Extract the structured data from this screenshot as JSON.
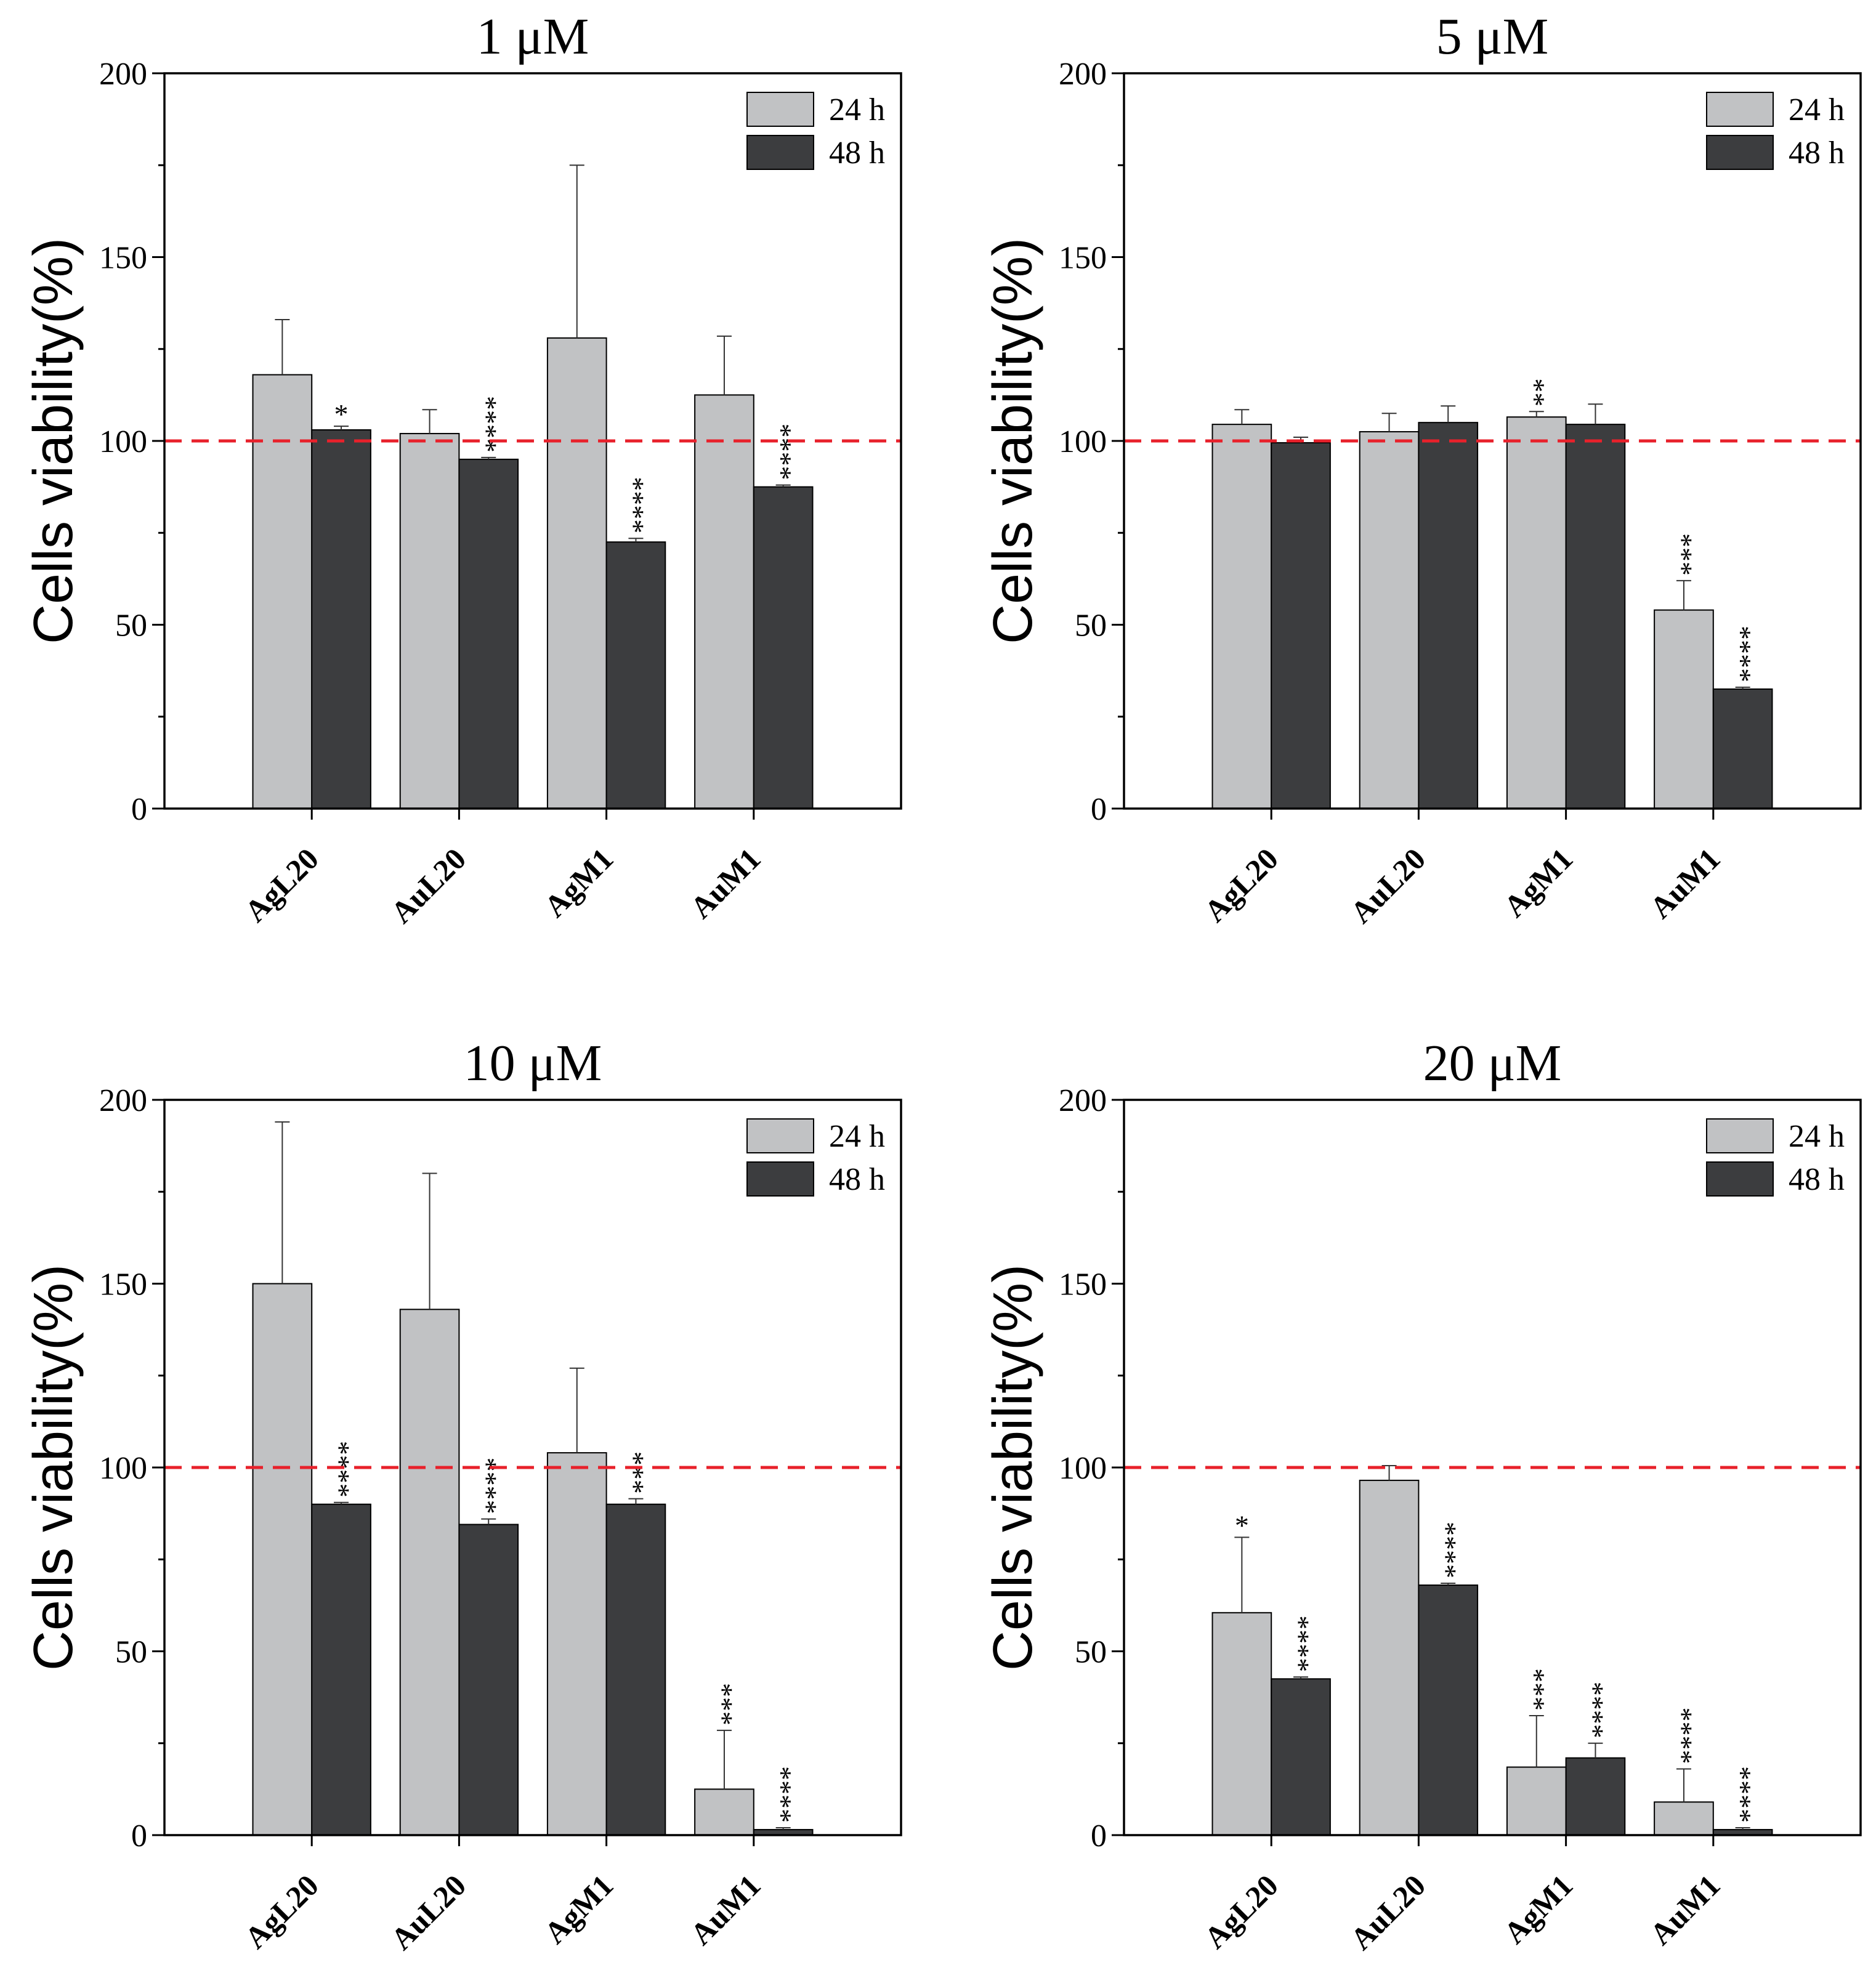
{
  "colors": {
    "bar_24h": "#c1c2c4",
    "bar_48h": "#3c3d3f",
    "reference_line": "#e8212b",
    "axis": "#000000",
    "error_bar": "#333333"
  },
  "chart_data": [
    {
      "type": "bar",
      "title": "1 μM",
      "categories": [
        "AgL20",
        "AuL20",
        "AgM1",
        "AuM1"
      ],
      "xlabel": "",
      "ylabel": "Cells viability(%)",
      "ylim": [
        0,
        200
      ],
      "yticks": [
        0,
        50,
        100,
        150,
        200
      ],
      "reference_line": 100,
      "legend": "top-right",
      "series": [
        {
          "name": "24 h",
          "color": "#c1c2c4",
          "values": [
            118,
            102,
            128,
            112.5
          ],
          "errors": [
            15,
            6.5,
            47,
            16
          ],
          "significance": [
            "",
            "",
            "",
            ""
          ]
        },
        {
          "name": "48 h",
          "color": "#3c3d3f",
          "values": [
            103,
            95,
            72.5,
            87.5
          ],
          "errors": [
            1,
            0.5,
            1,
            0.5
          ],
          "significance": [
            "*",
            "****",
            "****",
            "****"
          ]
        }
      ]
    },
    {
      "type": "bar",
      "title": "5 μM",
      "categories": [
        "AgL20",
        "AuL20",
        "AgM1",
        "AuM1"
      ],
      "xlabel": "",
      "ylabel": "Cells viability(%)",
      "ylim": [
        0,
        200
      ],
      "yticks": [
        0,
        50,
        100,
        150,
        200
      ],
      "reference_line": 100,
      "legend": "top-right",
      "series": [
        {
          "name": "24 h",
          "color": "#c1c2c4",
          "values": [
            104.5,
            102.5,
            106.5,
            54
          ],
          "errors": [
            4,
            5,
            1.5,
            8
          ],
          "significance": [
            "",
            "",
            "**",
            "***"
          ]
        },
        {
          "name": "48 h",
          "color": "#3c3d3f",
          "values": [
            99.5,
            105,
            104.5,
            32.5
          ],
          "errors": [
            1.5,
            4.5,
            5.5,
            0.5
          ],
          "significance": [
            "",
            "",
            "",
            "****"
          ]
        }
      ]
    },
    {
      "type": "bar",
      "title": "10 μM",
      "categories": [
        "AgL20",
        "AuL20",
        "AgM1",
        "AuM1"
      ],
      "xlabel": "",
      "ylabel": "Cells viability(%)",
      "ylim": [
        0,
        200
      ],
      "yticks": [
        0,
        50,
        100,
        150,
        200
      ],
      "reference_line": 100,
      "legend": "top-right",
      "series": [
        {
          "name": "24 h",
          "color": "#c1c2c4",
          "values": [
            150,
            143,
            104,
            12.5
          ],
          "errors": [
            44,
            37,
            23,
            16
          ],
          "significance": [
            "",
            "",
            "",
            "***"
          ]
        },
        {
          "name": "48 h",
          "color": "#3c3d3f",
          "values": [
            90,
            84.5,
            90,
            1.5
          ],
          "errors": [
            0.5,
            1.5,
            1.5,
            0.5
          ],
          "significance": [
            "****",
            "****",
            "***",
            "****"
          ]
        }
      ]
    },
    {
      "type": "bar",
      "title": "20 μM",
      "categories": [
        "AgL20",
        "AuL20",
        "AgM1",
        "AuM1"
      ],
      "xlabel": "",
      "ylabel": "Cells viability(%)",
      "ylim": [
        0,
        200
      ],
      "yticks": [
        0,
        50,
        100,
        150,
        200
      ],
      "reference_line": 100,
      "legend": "top-right",
      "series": [
        {
          "name": "24 h",
          "color": "#c1c2c4",
          "values": [
            60.5,
            96.5,
            18.5,
            9
          ],
          "errors": [
            20.5,
            4,
            14,
            9
          ],
          "significance": [
            "*",
            "",
            "***",
            "****"
          ]
        },
        {
          "name": "48 h",
          "color": "#3c3d3f",
          "values": [
            42.5,
            68,
            21,
            1.5
          ],
          "errors": [
            0.5,
            0.5,
            4,
            0.5
          ],
          "significance": [
            "****",
            "****",
            "****",
            "****"
          ]
        }
      ]
    }
  ]
}
